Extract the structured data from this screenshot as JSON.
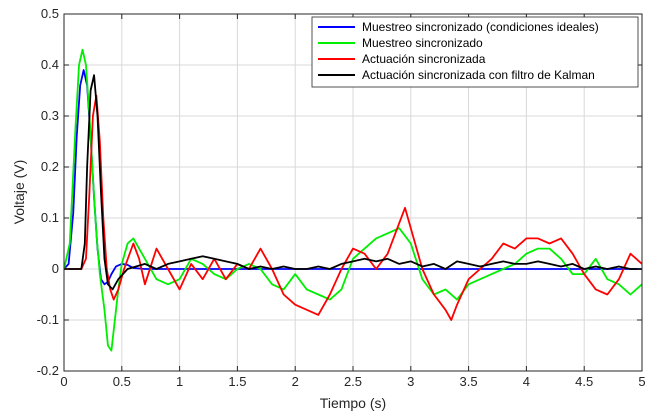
{
  "chart_data": {
    "type": "line",
    "title": "",
    "xlabel": "Tiempo (s)",
    "ylabel": "Voltaje (V)",
    "xlim": [
      0,
      5
    ],
    "ylim": [
      -0.2,
      0.5
    ],
    "xticks": [
      0,
      0.5,
      1,
      1.5,
      2,
      2.5,
      3,
      3.5,
      4,
      4.5,
      5
    ],
    "xtick_labels": [
      "0",
      "0.5",
      "1",
      "1.5",
      "2",
      "2.5",
      "3",
      "3.5",
      "4",
      "4.5",
      "5"
    ],
    "yticks": [
      -0.2,
      -0.1,
      0,
      0.1,
      0.2,
      0.3,
      0.4,
      0.5
    ],
    "ytick_labels": [
      "-0.2",
      "-0.1",
      "0",
      "0.1",
      "0.2",
      "0.3",
      "0.4",
      "0.5"
    ],
    "grid": true,
    "legend_position": "top-right",
    "series": [
      {
        "name": "Muestreo sincronizado (condiciones ideales)",
        "color": "#0000ff",
        "x": [
          0,
          0.04,
          0.08,
          0.11,
          0.14,
          0.17,
          0.2,
          0.23,
          0.26,
          0.29,
          0.32,
          0.35,
          0.38,
          0.41,
          0.45,
          0.5,
          0.55,
          0.6,
          0.7,
          0.8,
          0.9,
          1.0,
          5.0
        ],
        "y": [
          0,
          0.01,
          0.11,
          0.26,
          0.36,
          0.39,
          0.36,
          0.26,
          0.14,
          0.04,
          -0.02,
          -0.03,
          -0.025,
          -0.01,
          0.005,
          0.01,
          0.008,
          0.002,
          0,
          0,
          0,
          0,
          0
        ]
      },
      {
        "name": "Muestreo sincronizado",
        "color": "#00ee00",
        "x": [
          0,
          0.05,
          0.1,
          0.13,
          0.16,
          0.19,
          0.22,
          0.25,
          0.28,
          0.31,
          0.35,
          0.38,
          0.41,
          0.44,
          0.47,
          0.5,
          0.55,
          0.6,
          0.65,
          0.7,
          0.8,
          0.9,
          1.0,
          1.1,
          1.2,
          1.3,
          1.4,
          1.5,
          1.6,
          1.7,
          1.8,
          1.9,
          2.0,
          2.1,
          2.2,
          2.3,
          2.4,
          2.5,
          2.6,
          2.7,
          2.8,
          2.9,
          3.0,
          3.1,
          3.2,
          3.3,
          3.4,
          3.5,
          3.6,
          3.7,
          3.8,
          3.9,
          4.0,
          4.1,
          4.2,
          4.3,
          4.4,
          4.5,
          4.6,
          4.7,
          4.8,
          4.9,
          5.0
        ],
        "y": [
          0,
          0.05,
          0.28,
          0.4,
          0.43,
          0.4,
          0.3,
          0.18,
          0.07,
          -0.01,
          -0.08,
          -0.15,
          -0.16,
          -0.1,
          -0.04,
          0.01,
          0.05,
          0.06,
          0.04,
          0.02,
          -0.02,
          -0.03,
          -0.02,
          0.02,
          0.01,
          -0.01,
          -0.02,
          0.0,
          0.01,
          0.0,
          -0.03,
          -0.04,
          -0.01,
          -0.04,
          -0.05,
          -0.06,
          -0.04,
          0.02,
          0.04,
          0.06,
          0.07,
          0.08,
          0.05,
          -0.02,
          -0.05,
          -0.04,
          -0.06,
          -0.03,
          -0.02,
          -0.01,
          0.0,
          0.01,
          0.03,
          0.04,
          0.04,
          0.02,
          -0.01,
          -0.01,
          0.02,
          -0.02,
          -0.03,
          -0.05,
          -0.03
        ]
      },
      {
        "name": "Actuación sincronizada",
        "color": "#ff0000",
        "x": [
          0,
          0.1,
          0.15,
          0.19,
          0.22,
          0.25,
          0.28,
          0.31,
          0.34,
          0.37,
          0.4,
          0.43,
          0.47,
          0.52,
          0.6,
          0.65,
          0.7,
          0.8,
          0.9,
          1.0,
          1.1,
          1.2,
          1.3,
          1.4,
          1.5,
          1.6,
          1.7,
          1.8,
          1.9,
          2.0,
          2.1,
          2.2,
          2.3,
          2.4,
          2.5,
          2.6,
          2.7,
          2.8,
          2.9,
          2.95,
          3.0,
          3.1,
          3.2,
          3.3,
          3.35,
          3.4,
          3.5,
          3.6,
          3.7,
          3.8,
          3.9,
          4.0,
          4.1,
          4.2,
          4.3,
          4.4,
          4.5,
          4.6,
          4.7,
          4.8,
          4.9,
          5.0
        ],
        "y": [
          0,
          0.0,
          0.0,
          0.02,
          0.15,
          0.3,
          0.34,
          0.25,
          0.1,
          0.0,
          -0.04,
          -0.06,
          -0.04,
          0.0,
          0.05,
          0.02,
          -0.03,
          0.04,
          0.0,
          -0.04,
          0.01,
          -0.02,
          0.02,
          -0.02,
          0.01,
          0.0,
          0.04,
          0.0,
          -0.05,
          -0.07,
          -0.08,
          -0.09,
          -0.05,
          0.0,
          0.04,
          0.03,
          0.0,
          0.03,
          0.09,
          0.12,
          0.08,
          0.0,
          -0.05,
          -0.08,
          -0.1,
          -0.07,
          -0.02,
          0.0,
          0.02,
          0.05,
          0.04,
          0.06,
          0.06,
          0.05,
          0.06,
          0.03,
          -0.01,
          -0.04,
          -0.05,
          -0.02,
          0.03,
          0.01
        ]
      },
      {
        "name": "Actuación sincronizada con filtro de Kalman",
        "color": "#000000",
        "x": [
          0,
          0.1,
          0.15,
          0.18,
          0.2,
          0.23,
          0.26,
          0.29,
          0.32,
          0.35,
          0.38,
          0.42,
          0.47,
          0.55,
          0.7,
          0.8,
          0.9,
          1.0,
          1.1,
          1.2,
          1.3,
          1.4,
          1.5,
          1.6,
          1.7,
          1.8,
          1.9,
          2.0,
          2.1,
          2.2,
          2.3,
          2.4,
          2.5,
          2.6,
          2.7,
          2.8,
          2.9,
          3.0,
          3.1,
          3.2,
          3.3,
          3.4,
          3.5,
          3.6,
          3.7,
          3.8,
          3.9,
          4.0,
          4.1,
          4.2,
          4.3,
          4.4,
          4.5,
          4.6,
          4.7,
          4.8,
          4.9,
          5.0
        ],
        "y": [
          0,
          0.0,
          0.0,
          0.05,
          0.2,
          0.35,
          0.38,
          0.3,
          0.15,
          0.02,
          -0.03,
          -0.04,
          -0.02,
          0.0,
          0.01,
          0.0,
          0.01,
          0.015,
          0.02,
          0.025,
          0.02,
          0.015,
          0.01,
          0.0,
          0.005,
          0.0,
          0.005,
          0.0,
          0.0,
          0.005,
          0.0,
          0.01,
          0.015,
          0.02,
          0.015,
          0.02,
          0.01,
          0.015,
          0.005,
          0.01,
          0.0,
          0.015,
          0.01,
          0.005,
          0.01,
          0.015,
          0.01,
          0.01,
          0.015,
          0.01,
          0.005,
          0.01,
          0.0,
          0.005,
          0.0,
          0.005,
          0.0,
          0.0
        ]
      }
    ]
  }
}
